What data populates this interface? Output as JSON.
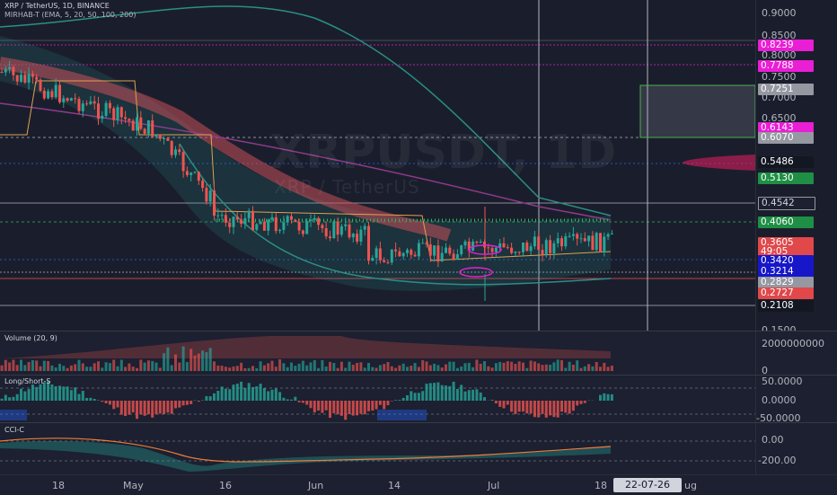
{
  "symbol_title": "XRP / TetherUS, 1D, BINANCE",
  "indicator_mirhab": "MIRHAB-T (EMA, 5, 20, 50, 100, 200)",
  "indicator_volume": "Volume (20, 9)",
  "indicator_longshort": "Long/Short-S",
  "indicator_cci": "CCI-C",
  "watermark_ticker": "XRPUSDT, 1D",
  "watermark_name": "XRP / TetherUS",
  "price_axis": {
    "ticks": [
      "0.9000",
      "0.8500",
      "0.8000",
      "0.7500",
      "0.7000",
      "0.6500",
      "0.1500"
    ],
    "labels": [
      {
        "text": "0.8239",
        "color": "#e91ed5"
      },
      {
        "text": "0.7788",
        "color": "#e91ed5"
      },
      {
        "text": "0.7251",
        "color": "#9598a1"
      },
      {
        "text": "0.6143",
        "color": "#e91ed5"
      },
      {
        "text": "0.6070",
        "color": "#9598a1"
      },
      {
        "text": "0.5486",
        "color": "#131722"
      },
      {
        "text": "0.5130",
        "color": "#1f8f45"
      },
      {
        "text": "0.4542",
        "color": "#1c2030"
      },
      {
        "text": "0.4060",
        "color": "#1f8f45"
      },
      {
        "text": "0.3605",
        "color": "#e0484a"
      },
      {
        "text": "49:05",
        "color": "#e0484a"
      },
      {
        "text": "0.3420",
        "color": "#1717c9"
      },
      {
        "text": "0.3214",
        "color": "#1717c9"
      },
      {
        "text": "0.2829",
        "color": "#9598a1"
      },
      {
        "text": "0.2727",
        "color": "#e0484a"
      },
      {
        "text": "0.2108",
        "color": "#131722"
      }
    ]
  },
  "volume_axis": {
    "top": "2000000000",
    "bottom": "0"
  },
  "ls_axis": {
    "top": "50.0000",
    "mid": "0.0000",
    "bottom": "-50.0000"
  },
  "cci_axis": {
    "top": "0.00",
    "bottom": "-200.00"
  },
  "time_axis": {
    "labels": [
      "18",
      "May",
      "16",
      "Jun",
      "14",
      "Jul",
      "18",
      "ug"
    ],
    "cursor_date": "22-07-26"
  },
  "colors": {
    "bull": "#26a69a",
    "bear": "#ef5350",
    "magenta": "#e91ed5",
    "background": "#1a1e2c"
  }
}
